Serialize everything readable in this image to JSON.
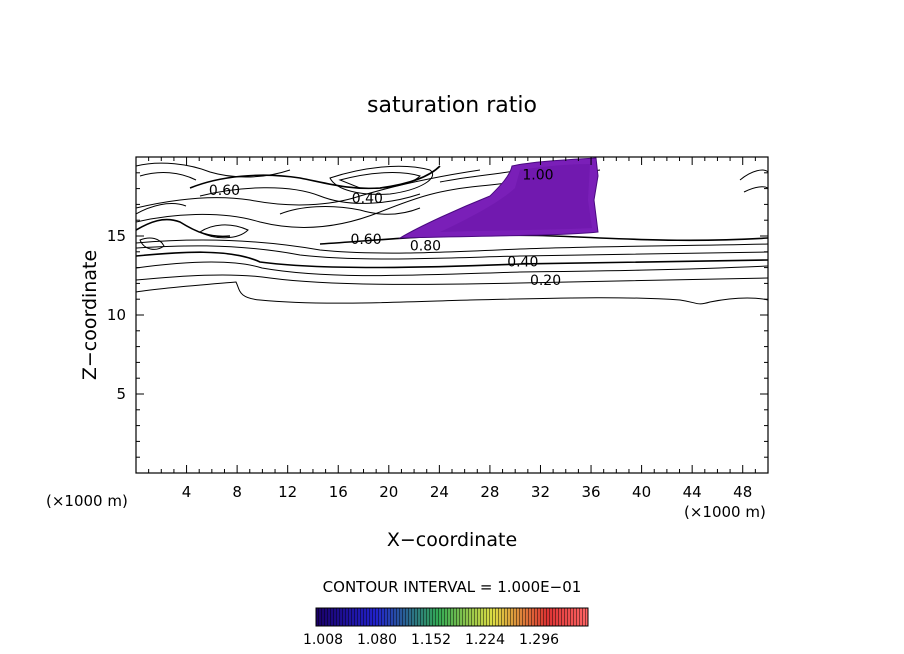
{
  "chart_data": {
    "type": "contour",
    "title": "saturation ratio",
    "xlabel": "X−coordinate",
    "ylabel": "Z−coordinate",
    "x_unit_label": "(×1000 m)",
    "z_unit_label": "(×1000 m)",
    "xlim": [
      0,
      50
    ],
    "ylim": [
      0,
      20
    ],
    "x_ticks": [
      4,
      8,
      12,
      16,
      20,
      24,
      28,
      32,
      36,
      40,
      44,
      48
    ],
    "y_ticks": [
      5,
      10,
      15
    ],
    "contour_interval_text": "CONTOUR INTERVAL = 1.000E−01",
    "contour_labels": [
      {
        "text": "0.60",
        "x": 7.0,
        "y": 17.9
      },
      {
        "text": "0.40",
        "x": 18.3,
        "y": 17.4
      },
      {
        "text": "0.60",
        "x": 18.2,
        "y": 14.8
      },
      {
        "text": "0.80",
        "x": 22.9,
        "y": 14.4
      },
      {
        "text": "0.40",
        "x": 30.6,
        "y": 13.4
      },
      {
        "text": "0.20",
        "x": 32.4,
        "y": 12.2
      },
      {
        "text": "1.00",
        "x": 31.8,
        "y": 18.9
      }
    ],
    "colorbar": {
      "ticks": [
        "1.008",
        "1.080",
        "1.152",
        "1.224",
        "1.296"
      ],
      "colors": [
        "#1a0066",
        "#2222cc",
        "#33aa55",
        "#dddd44",
        "#dd3333",
        "#ff6666"
      ]
    },
    "supersaturated_region_color": "#7a1fb8"
  }
}
